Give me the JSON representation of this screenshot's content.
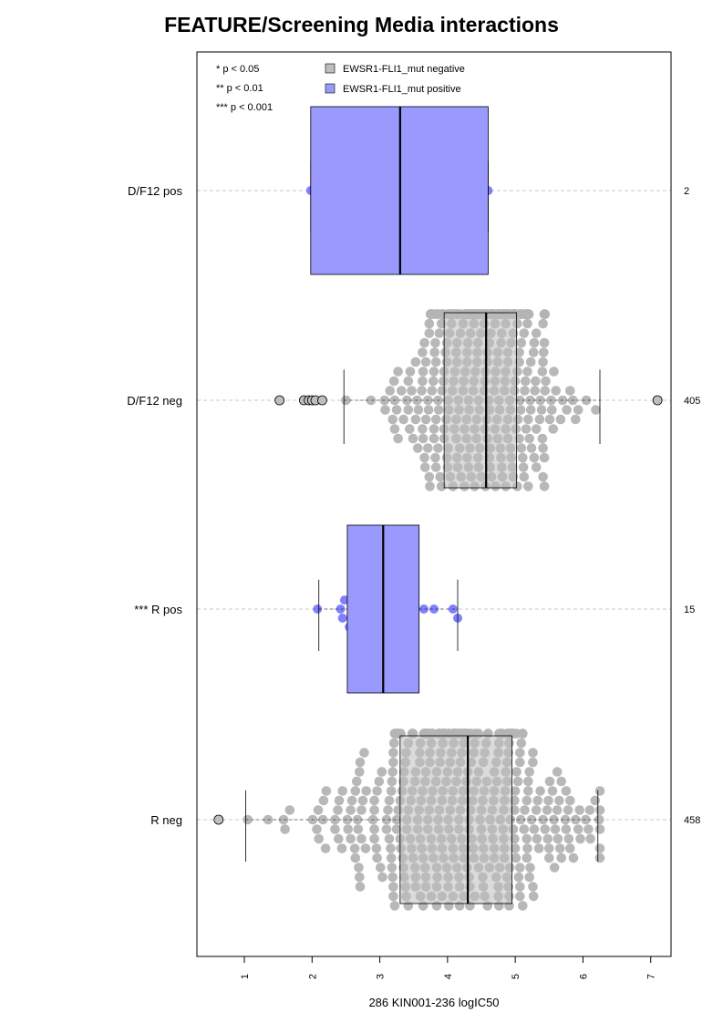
{
  "chart_data": {
    "type": "boxplot-beeswarm",
    "title": "FEATURE/Screening Media interactions",
    "xlabel": "286 KIN001-236 logIC50",
    "xlim": [
      0.3,
      7.3
    ],
    "xticks": [
      "1",
      "2",
      "3",
      "4",
      "5",
      "6",
      "7"
    ],
    "legend": {
      "position": "top-left",
      "significance": [
        "* p < 0.05",
        "** p < 0.01",
        "*** p < 0.001"
      ],
      "entries": [
        {
          "label": "EWSR1-FLI1_mut negative",
          "color": "#bebebe"
        },
        {
          "label": "EWSR1-FLI1_mut positive",
          "color": "#9a9afe"
        }
      ]
    },
    "groups": [
      {
        "label": "D/F12 pos",
        "count": "2",
        "status": "positive",
        "box": {
          "q1": 1.98,
          "median": 3.3,
          "q3": 4.6,
          "whisker_low": 1.98,
          "whisker_high": 4.6
        },
        "points": [
          1.98,
          4.6
        ],
        "outliers": []
      },
      {
        "label": "D/F12 neg",
        "count": "405",
        "status": "negative",
        "box": {
          "q1": 3.95,
          "median": 4.57,
          "q3": 5.02,
          "whisker_low": 2.47,
          "whisker_high": 6.25
        },
        "points_generated": {
          "n": 398,
          "center": 4.5,
          "spread": 0.62,
          "min": 2.5,
          "max": 6.3
        },
        "outliers": [
          1.52,
          1.88,
          1.95,
          2.0,
          2.05,
          2.15,
          7.1
        ]
      },
      {
        "label": "*** R pos",
        "count": "15",
        "status": "positive",
        "box": {
          "q1": 2.52,
          "median": 3.05,
          "q3": 3.58,
          "whisker_low": 2.1,
          "whisker_high": 4.15
        },
        "points": [
          2.08,
          2.42,
          2.45,
          2.48,
          2.55,
          2.58,
          2.75,
          3.05,
          3.15,
          3.22,
          3.48,
          3.65,
          3.8,
          4.08,
          4.15
        ],
        "outliers": []
      },
      {
        "label": "R neg",
        "count": "458",
        "status": "negative",
        "box": {
          "q1": 3.3,
          "median": 4.3,
          "q3": 4.95,
          "whisker_low": 1.02,
          "whisker_high": 6.22
        },
        "points_generated": {
          "n": 457,
          "center": 4.1,
          "spread": 0.95,
          "min": 1.05,
          "max": 6.25
        },
        "outliers": [
          0.62
        ]
      }
    ]
  }
}
